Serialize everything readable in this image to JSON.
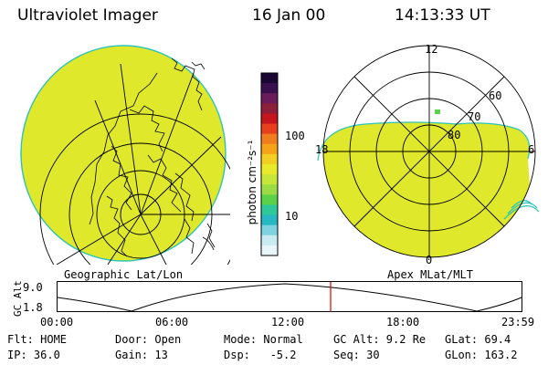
{
  "header": {
    "title": "Ultraviolet Imager",
    "date": "16 Jan 00",
    "time": "14:13:33 UT"
  },
  "geo_panel": {
    "label": "Geographic Lat/Lon"
  },
  "colorbar": {
    "unit_label": "photon cm⁻²s⁻¹",
    "ticks": [
      "100",
      "10"
    ],
    "colors": [
      "#1a0633",
      "#3a0f4f",
      "#6a1b5a",
      "#8e1f3a",
      "#c4161c",
      "#e8401e",
      "#f07d1e",
      "#f5a41a",
      "#f2cf22",
      "#e9ea2a",
      "#c6e63a",
      "#9bdc44",
      "#59d24a",
      "#2fc89b",
      "#28b8c4",
      "#7ed3e0",
      "#c8ecf2",
      "#e8f6f9"
    ]
  },
  "polar_panel": {
    "label": "Apex MLat/MLT",
    "mlt_labels": {
      "top": "12",
      "left": "18",
      "right": "6",
      "bottom": "0"
    },
    "lat_labels": [
      "60",
      "70",
      "80"
    ]
  },
  "altitude_plot": {
    "axis_label": "GC Alt",
    "y_ticks": [
      "9.0",
      "1.8"
    ],
    "x_ticks": [
      "00:00",
      "06:00",
      "12:00",
      "18:00",
      "23:59"
    ]
  },
  "status": {
    "flt": "Flt: HOME",
    "door": "Door: Open",
    "mode": "Mode: Normal",
    "gc_alt": "GC Alt: 9.2 Re",
    "glat": "GLat: 69.4",
    "ip": "IP: 36.0",
    "gain": "Gain: 13",
    "dsp": "Dsp:   -5.2",
    "seq": "Seq: 30",
    "glon": "GLon: 163.2"
  },
  "colors": {
    "auroral_fill": "#dfe82a",
    "limb": "#2cc3b8",
    "time_marker": "#e00000"
  }
}
